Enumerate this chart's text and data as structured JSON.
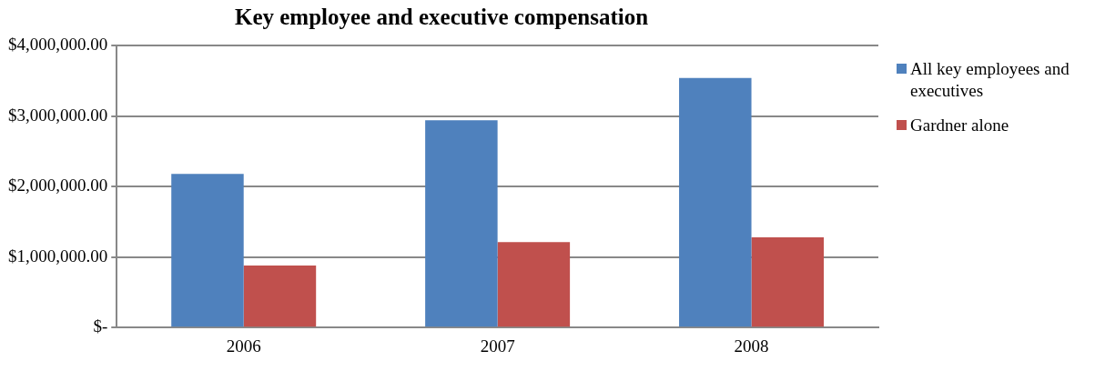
{
  "chart_data": {
    "type": "bar",
    "title": "Key employee and executive compensation",
    "categories": [
      "2006",
      "2007",
      "2008"
    ],
    "series": [
      {
        "name": "All key employees and executives",
        "color": "#4f81bd",
        "values": [
          2180000,
          2940000,
          3540000
        ]
      },
      {
        "name": "Gardner alone",
        "color": "#c0504d",
        "values": [
          880000,
          1210000,
          1280000
        ]
      }
    ],
    "ylim": [
      0,
      4000000
    ],
    "yticks": [
      {
        "value": 0,
        "label": "$-"
      },
      {
        "value": 1000000,
        "label": "$1,000,000.00"
      },
      {
        "value": 2000000,
        "label": "$2,000,000.00"
      },
      {
        "value": 3000000,
        "label": "$3,000,000.00"
      },
      {
        "value": 4000000,
        "label": "$4,000,000.00"
      }
    ],
    "grid": "y",
    "legend": "right"
  }
}
